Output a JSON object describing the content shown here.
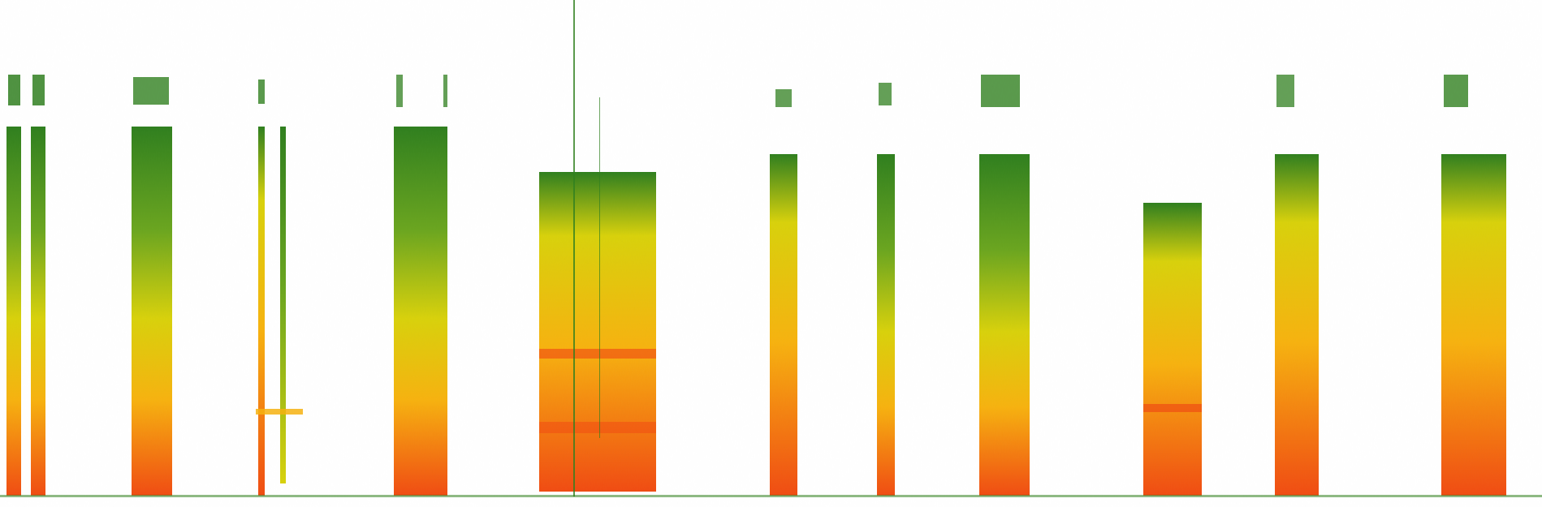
{
  "figure": {
    "kind": "spectrogram",
    "background": "#ffffff",
    "palette": {
      "low": "#2f7f1e",
      "mid_low": "#6aa51f",
      "mid": "#d8d10b",
      "high": "#f6b20f",
      "peak": "#f04b12"
    }
  }
}
